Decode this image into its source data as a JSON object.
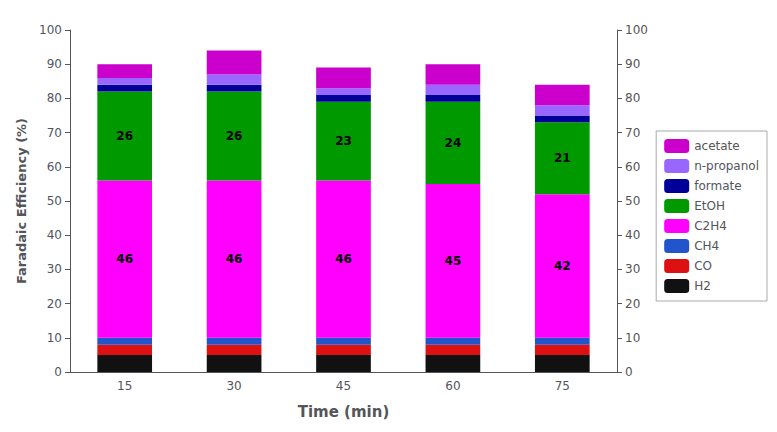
{
  "chart_data": {
    "type": "bar",
    "categories": [
      "15",
      "30",
      "45",
      "60",
      "75"
    ],
    "xlabel": "Time (min)",
    "ylabel": "Faradaic Efficiency (%)",
    "stacked": true,
    "series": [
      {
        "name": "H2",
        "color": "#111111",
        "values": [
          5.0,
          5.0,
          5.0,
          5.0,
          5.0
        ]
      },
      {
        "name": "CO",
        "color": "#dd1111",
        "values": [
          3.0,
          3.0,
          3.0,
          3.0,
          3.0
        ]
      },
      {
        "name": "CH4",
        "color": "#2255cc",
        "values": [
          2.0,
          2.0,
          2.0,
          2.0,
          2.0
        ]
      },
      {
        "name": "C2H4",
        "color": "#ff00ff",
        "values": [
          46,
          46,
          46,
          45,
          42
        ],
        "data_labels": true
      },
      {
        "name": "EtOH",
        "color": "#009900",
        "values": [
          26,
          26,
          23,
          24,
          21
        ],
        "data_labels": true
      },
      {
        "name": "formate",
        "color": "#000099",
        "values": [
          2.0,
          2.0,
          2.0,
          2.0,
          2.0
        ]
      },
      {
        "name": "n-propanol",
        "color": "#9966ff",
        "values": [
          2.0,
          3.0,
          2.0,
          3.0,
          3.0
        ]
      },
      {
        "name": "acetate",
        "color": "#cc00cc",
        "values": [
          4.0,
          7.0,
          6.0,
          6.0,
          6.0
        ]
      }
    ],
    "ylim": [
      0,
      100
    ],
    "yticks": [
      0,
      10,
      20,
      30,
      40,
      50,
      60,
      70,
      80,
      90,
      100
    ],
    "y2lim": [
      0,
      100
    ],
    "y2ticks": [
      0,
      10,
      20,
      30,
      40,
      50,
      60,
      70,
      80,
      90,
      100
    ],
    "grid": false,
    "legend": "right"
  }
}
